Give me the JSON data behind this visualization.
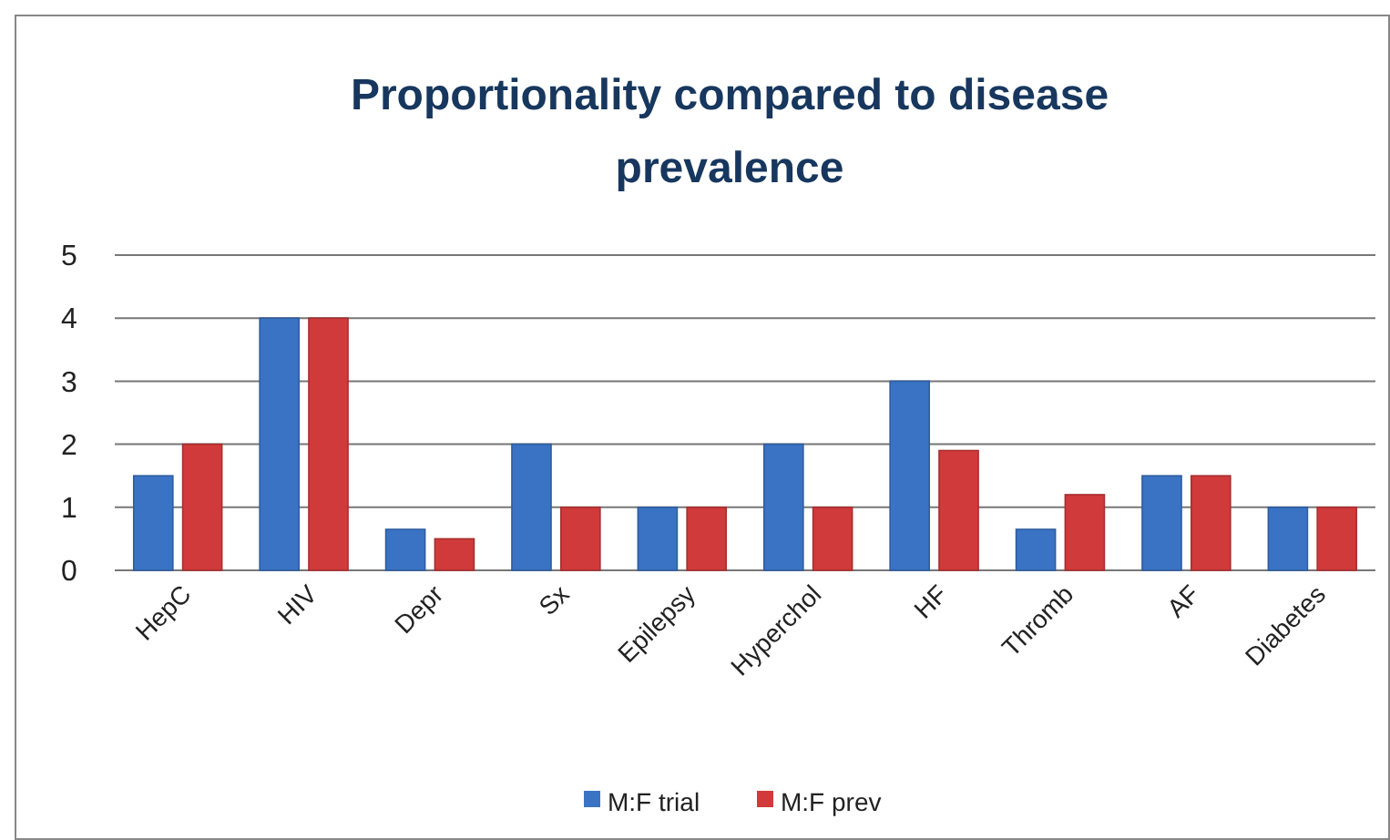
{
  "chart_data": {
    "type": "bar",
    "title": "Proportionality compared to disease prevalence",
    "categories": [
      "HepC",
      "HIV",
      "Depr",
      "Sx",
      "Epilepsy",
      "Hyperchol",
      "HF",
      "Thromb",
      "AF",
      "Diabetes"
    ],
    "series": [
      {
        "name": "M:F trial",
        "color": "#3a73c4",
        "values": [
          1.5,
          4,
          0.65,
          2,
          1,
          2,
          3,
          0.65,
          1.5,
          1
        ]
      },
      {
        "name": "M:F prev",
        "color": "#d03a3a",
        "values": [
          2,
          4,
          0.5,
          1,
          1,
          1,
          1.9,
          1.2,
          1.5,
          1
        ]
      }
    ],
    "ylim": [
      0,
      5
    ],
    "yticks": [
      0,
      1,
      2,
      3,
      4,
      5
    ],
    "grid": "y",
    "legend": "bottom"
  }
}
